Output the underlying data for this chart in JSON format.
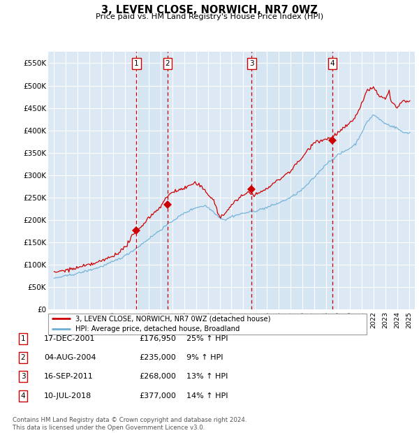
{
  "title": "3, LEVEN CLOSE, NORWICH, NR7 0WZ",
  "subtitle": "Price paid vs. HM Land Registry's House Price Index (HPI)",
  "ylabel_ticks": [
    "£0",
    "£50K",
    "£100K",
    "£150K",
    "£200K",
    "£250K",
    "£300K",
    "£350K",
    "£400K",
    "£450K",
    "£500K",
    "£550K"
  ],
  "ytick_values": [
    0,
    50000,
    100000,
    150000,
    200000,
    250000,
    300000,
    350000,
    400000,
    450000,
    500000,
    550000
  ],
  "ylim": [
    0,
    575000
  ],
  "plot_bg_color": "#dce9f5",
  "highlight_color": "#cce0f0",
  "grid_color": "#ffffff",
  "hpi_color": "#6baed6",
  "price_color": "#cc0000",
  "vline_color": "#cc0000",
  "box_color": "#cc0000",
  "sale_decimal_years": [
    2001.958,
    2004.583,
    2011.708,
    2018.542
  ],
  "sale_prices": [
    176950,
    235000,
    268000,
    377000
  ],
  "sale_labels": [
    "1",
    "2",
    "3",
    "4"
  ],
  "legend_line1": "3, LEVEN CLOSE, NORWICH, NR7 0WZ (detached house)",
  "legend_line2": "HPI: Average price, detached house, Broadland",
  "table_rows": [
    [
      "1",
      "17-DEC-2001",
      "£176,950",
      "25% ↑ HPI"
    ],
    [
      "2",
      "04-AUG-2004",
      "£235,000",
      "9% ↑ HPI"
    ],
    [
      "3",
      "16-SEP-2011",
      "£268,000",
      "13% ↑ HPI"
    ],
    [
      "4",
      "10-JUL-2018",
      "£377,000",
      "14% ↑ HPI"
    ]
  ],
  "footer": "Contains HM Land Registry data © Crown copyright and database right 2024.\nThis data is licensed under the Open Government Licence v3.0.",
  "hpi_key_years": [
    1995,
    1996,
    1997,
    1998,
    1999,
    2000,
    2001,
    2002,
    2003,
    2004,
    2005,
    2006,
    2007,
    2007.8,
    2008.5,
    2009.0,
    2009.5,
    2010,
    2011,
    2012,
    2013,
    2014,
    2015,
    2016,
    2017,
    2018,
    2019,
    2020,
    2020.5,
    2021,
    2021.5,
    2022,
    2022.5,
    2023,
    2023.5,
    2024,
    2024.5,
    2025
  ],
  "hpi_key_vals": [
    70000,
    75000,
    81000,
    88000,
    96000,
    107000,
    120000,
    138000,
    158000,
    178000,
    198000,
    215000,
    228000,
    232000,
    218000,
    205000,
    200000,
    208000,
    215000,
    220000,
    228000,
    238000,
    250000,
    268000,
    295000,
    325000,
    345000,
    360000,
    370000,
    395000,
    420000,
    435000,
    425000,
    415000,
    410000,
    405000,
    395000,
    395000
  ],
  "price_key_years": [
    1995,
    1996,
    1997,
    1998,
    1999,
    2000,
    2001,
    2001.5,
    2002,
    2003,
    2004,
    2004.5,
    2005,
    2006,
    2006.5,
    2007,
    2007.5,
    2008,
    2008.5,
    2009,
    2009.5,
    2010,
    2011,
    2011.5,
    2012,
    2013,
    2014,
    2015,
    2016,
    2017,
    2018,
    2018.5,
    2019,
    2020,
    2020.5,
    2021,
    2021.5,
    2022,
    2022.5,
    2023,
    2023.3,
    2023.5,
    2024,
    2024.5,
    2025
  ],
  "price_key_vals": [
    83000,
    88000,
    93000,
    100000,
    108000,
    120000,
    138000,
    160000,
    175000,
    205000,
    230000,
    250000,
    263000,
    270000,
    278000,
    282000,
    272000,
    258000,
    245000,
    205000,
    215000,
    235000,
    255000,
    263000,
    255000,
    270000,
    290000,
    310000,
    340000,
    375000,
    380000,
    385000,
    395000,
    415000,
    430000,
    460000,
    490000,
    495000,
    475000,
    470000,
    490000,
    465000,
    450000,
    465000,
    465000
  ]
}
